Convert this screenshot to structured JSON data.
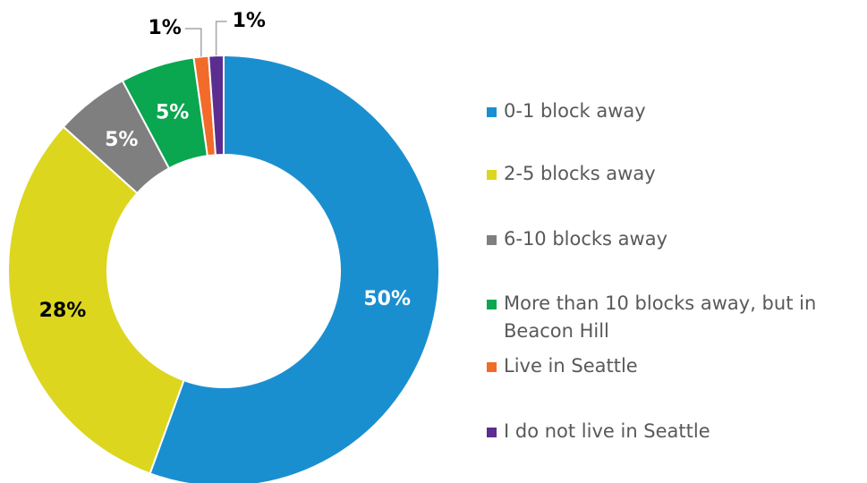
{
  "chart_data": {
    "type": "donut",
    "categories": [
      "0-1 block away",
      "2-5 blocks away",
      "6-10 blocks away",
      "More than 10 blocks away, but in Beacon Hill",
      "Live in Seattle",
      "I do not live in Seattle"
    ],
    "values": [
      50,
      28,
      5,
      5,
      1,
      1
    ],
    "value_labels": [
      "50%",
      "28%",
      "5%",
      "5%",
      "1%",
      "1%"
    ],
    "colors": [
      "#1a8fd0",
      "#dcd61f",
      "#7f7f7f",
      "#0aa650",
      "#f26b2a",
      "#5b2d90"
    ],
    "legend": "right"
  }
}
